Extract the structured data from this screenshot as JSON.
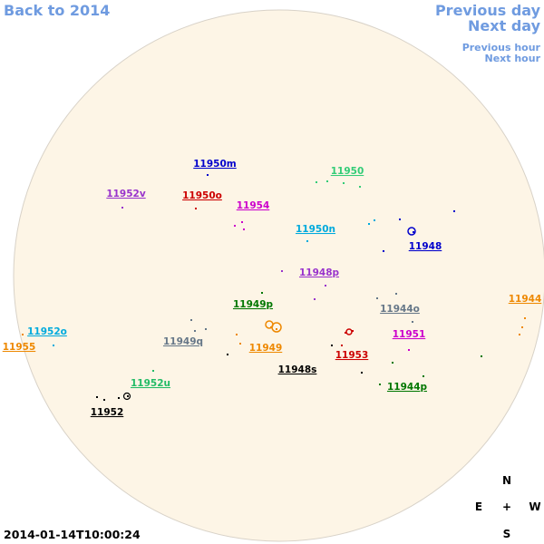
{
  "navigation": {
    "back": "Back to 2014",
    "previous_day": "Previous day",
    "next_day": "Next day",
    "previous_hour": "Previous hour",
    "next_hour": "Next hour"
  },
  "regions": [
    {
      "label": "11950m",
      "color": "#0000cc"
    },
    {
      "label": "11950",
      "color": "#33cc77"
    },
    {
      "label": "11952v",
      "color": "#9933cc"
    },
    {
      "label": "11950o",
      "color": "#cc0000"
    },
    {
      "label": "11954",
      "color": "#cc00cc"
    },
    {
      "label": "11950n",
      "color": "#00aadd"
    },
    {
      "label": "11948",
      "color": "#0000cc"
    },
    {
      "label": "11948p",
      "color": "#9933cc"
    },
    {
      "label": "11944",
      "color": "#ee8800"
    },
    {
      "label": "11949p",
      "color": "#007700"
    },
    {
      "label": "11944o",
      "color": "#667788"
    },
    {
      "label": "11952o",
      "color": "#00aadd"
    },
    {
      "label": "11951",
      "color": "#cc00cc"
    },
    {
      "label": "11955",
      "color": "#ee8800"
    },
    {
      "label": "11949q",
      "color": "#667788"
    },
    {
      "label": "11949",
      "color": "#ee8800"
    },
    {
      "label": "11953",
      "color": "#cc0000"
    },
    {
      "label": "11948s",
      "color": "#000000"
    },
    {
      "label": "11952u",
      "color": "#22bb66"
    },
    {
      "label": "11944p",
      "color": "#007700"
    },
    {
      "label": "11952",
      "color": "#000000"
    }
  ],
  "compass": {
    "north": "N",
    "east": "E",
    "center": "+",
    "west": "W",
    "south": "S"
  },
  "timestamp": "2014-01-14T10:00:24"
}
